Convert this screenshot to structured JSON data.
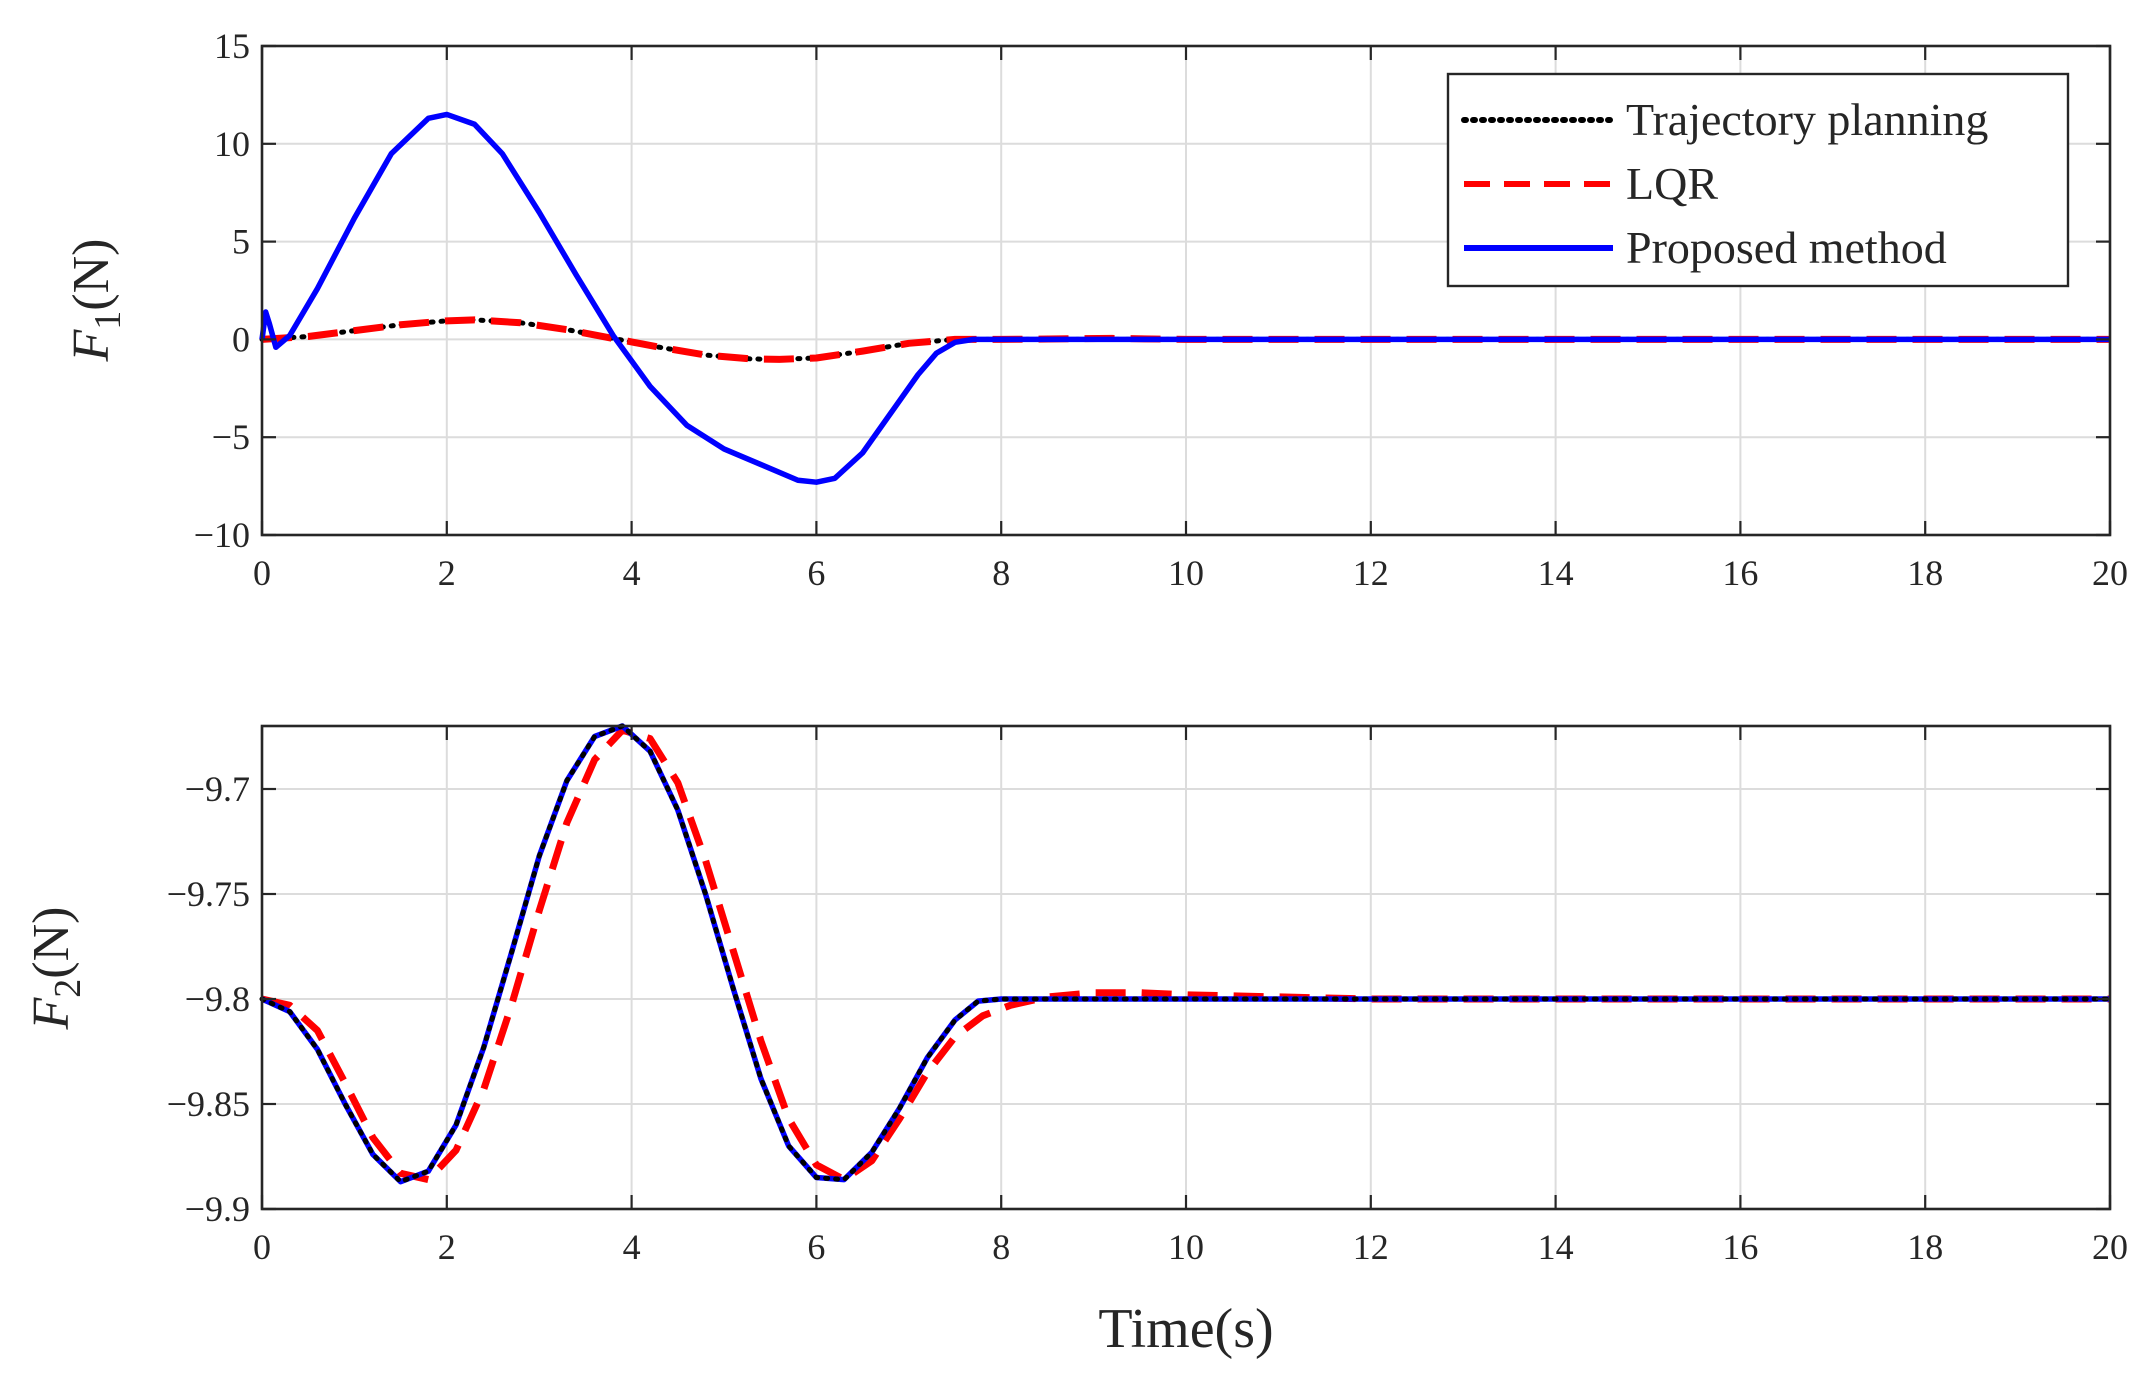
{
  "chart_data": [
    {
      "type": "line",
      "ylabel": {
        "symbol": "F",
        "subscript": "1",
        "unit": "(N)"
      },
      "xlabel": "",
      "xlim": [
        0,
        20
      ],
      "ylim": [
        -10,
        15
      ],
      "xticks": [
        0,
        2,
        4,
        6,
        8,
        10,
        12,
        14,
        16,
        18,
        20
      ],
      "yticks": [
        -10,
        -5,
        0,
        5,
        10,
        15
      ],
      "xtick_labels": [
        "0",
        "2",
        "4",
        "6",
        "8",
        "10",
        "12",
        "14",
        "16",
        "18",
        "20"
      ],
      "ytick_labels": [
        "−10",
        "−5",
        "0",
        "5",
        "10",
        "15"
      ],
      "grid": true,
      "legend": {
        "position": "top-right",
        "entries": [
          "Trajectory planning",
          "LQR",
          "Proposed method"
        ]
      },
      "series": [
        {
          "name": "Trajectory planning",
          "color": "#000000",
          "style": "dotted",
          "x": [
            0,
            0.5,
            1,
            1.5,
            2,
            2.3,
            2.8,
            3.3,
            3.8,
            4.3,
            4.8,
            5.3,
            5.6,
            6.0,
            6.5,
            7.0,
            7.5,
            8,
            10,
            12,
            14,
            16,
            18,
            20
          ],
          "y": [
            0,
            0.15,
            0.45,
            0.75,
            0.95,
            1.0,
            0.85,
            0.5,
            0.05,
            -0.4,
            -0.8,
            -1.0,
            -1.02,
            -0.95,
            -0.6,
            -0.2,
            0,
            0,
            0,
            0,
            0,
            0,
            0,
            0
          ]
        },
        {
          "name": "LQR",
          "color": "#ff0000",
          "style": "dashed",
          "x": [
            0,
            0.5,
            1,
            1.5,
            2,
            2.3,
            2.8,
            3.3,
            3.8,
            4.3,
            4.8,
            5.3,
            5.6,
            6.0,
            6.5,
            7.0,
            7.5,
            8,
            9.2,
            10,
            12,
            14,
            16,
            18,
            20
          ],
          "y": [
            0,
            0.15,
            0.45,
            0.75,
            0.95,
            1.0,
            0.85,
            0.5,
            0.05,
            -0.4,
            -0.8,
            -1.0,
            -1.02,
            -0.95,
            -0.6,
            -0.2,
            0,
            0,
            0.05,
            0,
            0,
            0,
            0,
            0,
            0
          ]
        },
        {
          "name": "Proposed method",
          "color": "#0000ff",
          "style": "solid",
          "x": [
            0,
            0.04,
            0.08,
            0.15,
            0.3,
            0.6,
            1.0,
            1.4,
            1.8,
            2.0,
            2.3,
            2.6,
            3.0,
            3.4,
            3.8,
            4.2,
            4.6,
            5.0,
            5.4,
            5.8,
            6.0,
            6.2,
            6.5,
            6.8,
            7.1,
            7.3,
            7.5,
            7.7,
            8,
            10,
            12,
            14,
            16,
            18,
            20
          ],
          "y": [
            0,
            1.4,
            0.8,
            -0.4,
            0.2,
            2.6,
            6.2,
            9.5,
            11.3,
            11.5,
            11.0,
            9.5,
            6.5,
            3.3,
            0.2,
            -2.4,
            -4.4,
            -5.6,
            -6.4,
            -7.2,
            -7.3,
            -7.1,
            -5.8,
            -3.8,
            -1.8,
            -0.7,
            -0.15,
            0,
            0,
            0,
            0,
            0,
            0,
            0,
            0
          ]
        }
      ]
    },
    {
      "type": "line",
      "ylabel": {
        "symbol": "F",
        "subscript": "2",
        "unit": "(N)"
      },
      "xlabel": "Time(s)",
      "xlim": [
        0,
        20
      ],
      "ylim": [
        -9.9,
        -9.67
      ],
      "xticks": [
        0,
        2,
        4,
        6,
        8,
        10,
        12,
        14,
        16,
        18,
        20
      ],
      "yticks": [
        -9.9,
        -9.85,
        -9.8,
        -9.75,
        -9.7
      ],
      "xtick_labels": [
        "0",
        "2",
        "4",
        "6",
        "8",
        "10",
        "12",
        "14",
        "16",
        "18",
        "20"
      ],
      "ytick_labels": [
        "−9.9",
        "−9.85",
        "−9.8",
        "−9.75",
        "−9.7"
      ],
      "grid": true,
      "series": [
        {
          "name": "Trajectory planning",
          "color": "#000000",
          "style": "dotted",
          "x": [
            0,
            0.3,
            0.6,
            0.9,
            1.2,
            1.5,
            1.8,
            2.1,
            2.4,
            2.7,
            3.0,
            3.3,
            3.6,
            3.9,
            4.2,
            4.5,
            4.8,
            5.1,
            5.4,
            5.7,
            6.0,
            6.3,
            6.6,
            6.9,
            7.2,
            7.5,
            7.75,
            8,
            10,
            12,
            14,
            16,
            18,
            20
          ],
          "y": [
            -9.8,
            -9.806,
            -9.824,
            -9.85,
            -9.874,
            -9.887,
            -9.882,
            -9.86,
            -9.823,
            -9.778,
            -9.732,
            -9.696,
            -9.675,
            -9.67,
            -9.682,
            -9.71,
            -9.75,
            -9.795,
            -9.838,
            -9.87,
            -9.885,
            -9.886,
            -9.873,
            -9.852,
            -9.828,
            -9.81,
            -9.801,
            -9.8,
            -9.8,
            -9.8,
            -9.8,
            -9.8,
            -9.8,
            -9.8
          ]
        },
        {
          "name": "LQR",
          "color": "#ff0000",
          "style": "dashed",
          "x": [
            0,
            0.3,
            0.6,
            0.9,
            1.2,
            1.5,
            1.8,
            2.1,
            2.4,
            2.7,
            3.0,
            3.3,
            3.6,
            3.9,
            4.2,
            4.5,
            4.8,
            5.1,
            5.4,
            5.7,
            6.0,
            6.3,
            6.6,
            6.9,
            7.2,
            7.5,
            7.8,
            8.1,
            8.5,
            9.0,
            9.5,
            10,
            11,
            12,
            14,
            16,
            18,
            20
          ],
          "y": [
            -9.8,
            -9.803,
            -9.815,
            -9.84,
            -9.866,
            -9.883,
            -9.886,
            -9.872,
            -9.843,
            -9.803,
            -9.758,
            -9.716,
            -9.686,
            -9.672,
            -9.676,
            -9.697,
            -9.734,
            -9.777,
            -9.82,
            -9.857,
            -9.879,
            -9.886,
            -9.877,
            -9.857,
            -9.835,
            -9.818,
            -9.808,
            -9.803,
            -9.799,
            -9.797,
            -9.797,
            -9.798,
            -9.799,
            -9.8,
            -9.8,
            -9.8,
            -9.8,
            -9.8
          ]
        },
        {
          "name": "Proposed method",
          "color": "#0000ff",
          "style": "solid",
          "x": [
            0,
            0.3,
            0.6,
            0.9,
            1.2,
            1.5,
            1.8,
            2.1,
            2.4,
            2.7,
            3.0,
            3.3,
            3.6,
            3.9,
            4.2,
            4.5,
            4.8,
            5.1,
            5.4,
            5.7,
            6.0,
            6.3,
            6.6,
            6.9,
            7.2,
            7.5,
            7.75,
            8,
            10,
            12,
            14,
            16,
            18,
            20
          ],
          "y": [
            -9.8,
            -9.806,
            -9.824,
            -9.85,
            -9.874,
            -9.887,
            -9.882,
            -9.86,
            -9.823,
            -9.778,
            -9.732,
            -9.696,
            -9.675,
            -9.67,
            -9.682,
            -9.71,
            -9.75,
            -9.795,
            -9.838,
            -9.87,
            -9.885,
            -9.886,
            -9.873,
            -9.852,
            -9.828,
            -9.81,
            -9.801,
            -9.8,
            -9.8,
            -9.8,
            -9.8,
            -9.8,
            -9.8,
            -9.8
          ]
        }
      ]
    }
  ]
}
